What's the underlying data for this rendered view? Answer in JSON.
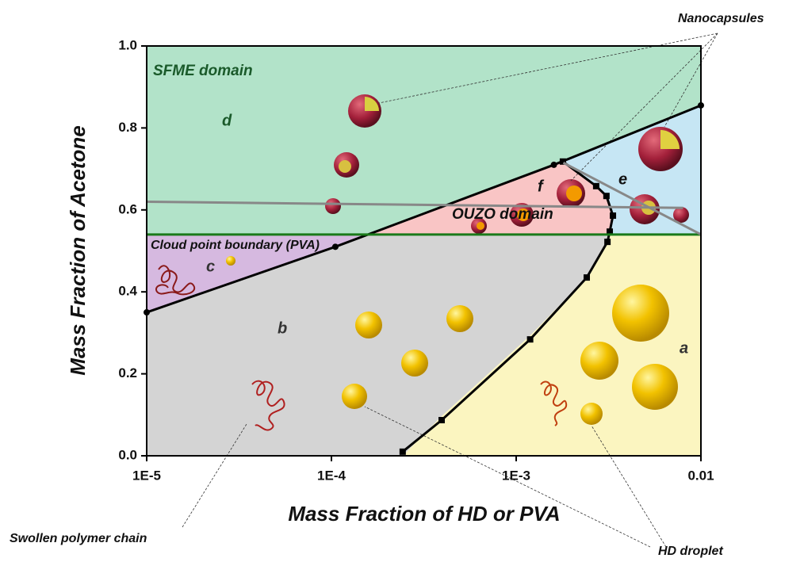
{
  "chart_data": {
    "type": "line",
    "xlabel": "Mass Fraction of HD or PVA",
    "ylabel": "Mass Fraction of Acetone",
    "xscale": "log",
    "xlim": [
      1e-05,
      0.01
    ],
    "ylim": [
      0,
      1
    ],
    "xticks": [
      {
        "value": 1e-05,
        "label": "1E-5"
      },
      {
        "value": 0.0001,
        "label": "1E-4"
      },
      {
        "value": 0.001,
        "label": "1E-3"
      },
      0.01
    ],
    "yticks": [
      {
        "value": 0,
        "label": "0.0"
      },
      0.2,
      0.4,
      0.6,
      0.8,
      {
        "value": 1,
        "label": "1.0"
      }
    ],
    "series": [
      {
        "color": "#000000",
        "marker": "circle",
        "x": [
          1e-05,
          0.000105,
          0.0016,
          0.01
        ],
        "values": [
          0.35,
          0.51,
          0.71,
          0.855
        ]
      },
      {
        "color": "#000000",
        "marker": "square",
        "x": [
          0.000243,
          0.000395,
          0.00119,
          0.00241,
          0.00312,
          0.00321,
          0.00334,
          0.00308,
          0.00271,
          0.00179
        ],
        "values": [
          0.01,
          0.087,
          0.284,
          0.435,
          0.522,
          0.547,
          0.586,
          0.634,
          0.658,
          0.718
        ]
      },
      {
        "color": "#1a7a1a",
        "marker": "none",
        "x": [
          1e-05,
          0.01
        ],
        "values": [
          0.54,
          0.54
        ]
      },
      {
        "color": "#888888",
        "marker": "none",
        "x": [
          1e-05,
          0.008
        ],
        "values": [
          0.62,
          0.605
        ]
      },
      {
        "color": "#888888",
        "marker": "none",
        "x": [
          0.0018,
          0.01
        ],
        "values": [
          0.715,
          0.54
        ]
      }
    ],
    "annotations": [
      "SFME domain",
      "OUZO domain",
      "Cloud point boundary (PVA)",
      "a",
      "b",
      "c",
      "d",
      "e",
      "f",
      "Nanocapsules",
      "Swollen polymer chain",
      "HD droplet"
    ]
  }
}
